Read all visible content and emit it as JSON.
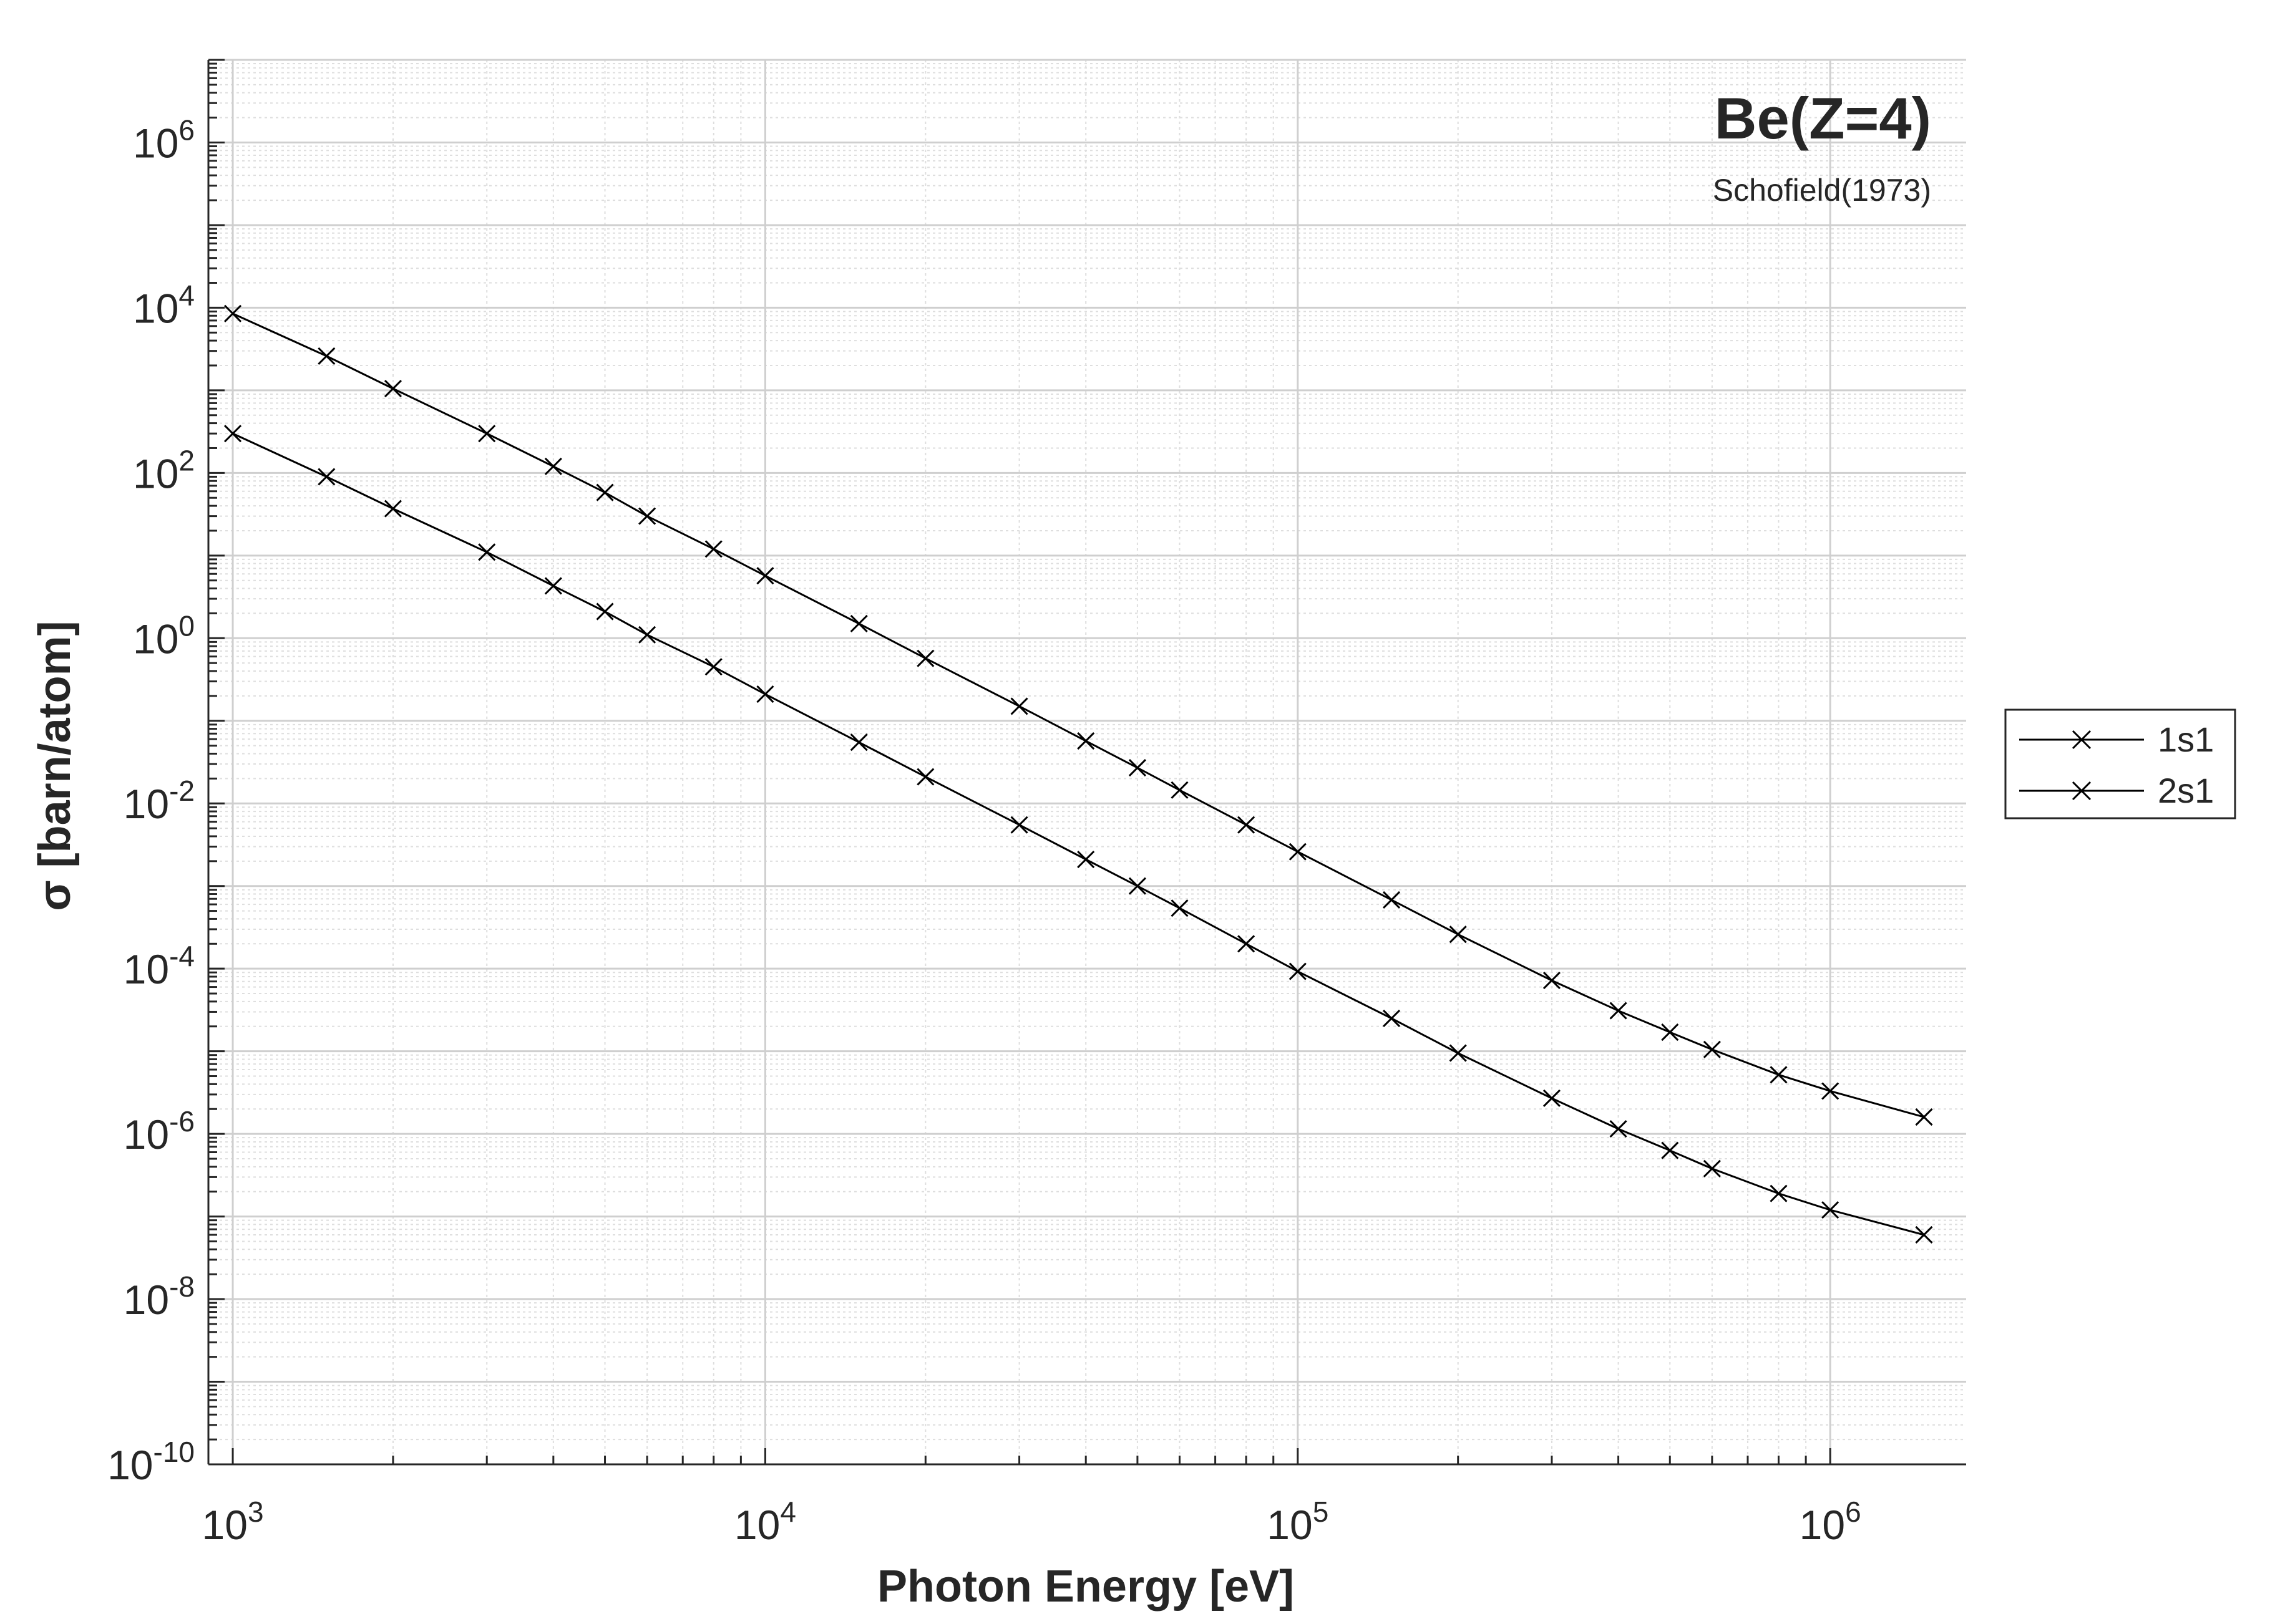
{
  "chart_data": {
    "type": "line",
    "title": "Be(Z=4)",
    "subtitle": "Schofield(1973)",
    "xlabel": "Photon Energy [eV]",
    "ylabel": "σ [barn/atom]",
    "xscale": "log",
    "yscale": "log",
    "xlim": [
      900,
      1800000
    ],
    "ylim": [
      1e-10,
      10000000.0
    ],
    "grid": true,
    "minor_grid": true,
    "legend_position": "outside-right",
    "x_ticks": [
      {
        "value": 1000,
        "base": "10",
        "exp": "3"
      },
      {
        "value": 10000,
        "base": "10",
        "exp": "4"
      },
      {
        "value": 100000,
        "base": "10",
        "exp": "5"
      },
      {
        "value": 1000000,
        "base": "10",
        "exp": "6"
      }
    ],
    "y_ticks": [
      {
        "value": 1e-10,
        "base": "10",
        "exp": "-10"
      },
      {
        "value": 1e-08,
        "base": "10",
        "exp": "-8"
      },
      {
        "value": 1e-06,
        "base": "10",
        "exp": "-6"
      },
      {
        "value": 0.0001,
        "base": "10",
        "exp": "-4"
      },
      {
        "value": 0.01,
        "base": "10",
        "exp": "-2"
      },
      {
        "value": 1,
        "base": "10",
        "exp": "0"
      },
      {
        "value": 100,
        "base": "10",
        "exp": "2"
      },
      {
        "value": 10000,
        "base": "10",
        "exp": "4"
      },
      {
        "value": 1000000,
        "base": "10",
        "exp": "6"
      }
    ],
    "x": [
      1000,
      1500,
      2000,
      3000,
      4000,
      5000,
      6000,
      8000,
      10000,
      15000,
      20000,
      30000,
      40000,
      50000,
      60000,
      80000,
      100000,
      150000,
      200000,
      300000,
      400000,
      500000,
      600000,
      800000,
      1000000,
      1500000
    ],
    "series": [
      {
        "name": "1s1",
        "marker": "x",
        "color": "#000000",
        "values": [
          8500,
          2600,
          1050,
          300,
          120,
          58,
          30,
          12,
          5.7,
          1.5,
          0.57,
          0.15,
          0.057,
          0.027,
          0.0145,
          0.0055,
          0.0026,
          0.00068,
          0.00026,
          7.2e-05,
          3.1e-05,
          1.7e-05,
          1.05e-05,
          5.2e-06,
          3.3e-06,
          1.6e-06
        ]
      },
      {
        "name": "2s1",
        "marker": "x",
        "color": "#000000",
        "values": [
          300,
          90,
          37,
          11,
          4.3,
          2.1,
          1.1,
          0.45,
          0.21,
          0.055,
          0.021,
          0.0055,
          0.0021,
          0.001,
          0.00054,
          0.0002,
          9.26e-05,
          2.5e-05,
          9.5e-06,
          2.7e-06,
          1.15e-06,
          6.3e-07,
          3.8e-07,
          1.9e-07,
          1.2e-07,
          6e-08
        ]
      }
    ]
  }
}
